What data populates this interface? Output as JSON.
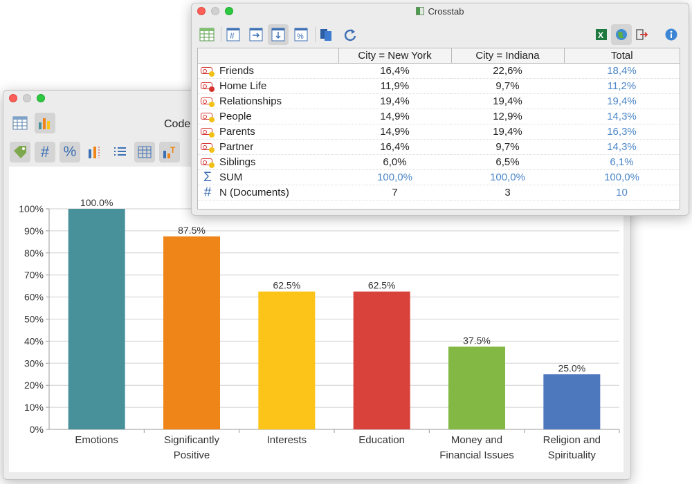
{
  "chart_window": {
    "title_partial": "Code",
    "toolbar": [
      {
        "name": "table-view-icon"
      },
      {
        "name": "chart-view-icon"
      },
      {
        "name": "tag-icon"
      },
      {
        "name": "hash-icon"
      },
      {
        "name": "percent-icon"
      },
      {
        "name": "bar-chart-icon"
      },
      {
        "name": "list-icon"
      },
      {
        "name": "grid-icon"
      },
      {
        "name": "text-chart-icon"
      }
    ]
  },
  "chart_data": {
    "type": "bar",
    "categories": [
      [
        "Emotions"
      ],
      [
        "Significantly",
        "Positive"
      ],
      [
        "Interests"
      ],
      [
        "Education"
      ],
      [
        "Money and",
        "Financial Issues"
      ],
      [
        "Religion and",
        "Spirituality"
      ]
    ],
    "values": [
      100.0,
      87.5,
      62.5,
      62.5,
      37.5,
      25.0
    ],
    "data_labels": [
      "100.0%",
      "87.5%",
      "62.5%",
      "62.5%",
      "37.5%",
      "25.0%"
    ],
    "colors": [
      "#48919b",
      "#ef8519",
      "#fcc318",
      "#d9413b",
      "#82b843",
      "#4e78bd"
    ],
    "ylim": [
      0,
      100
    ],
    "yticks": [
      "0%",
      "10%",
      "20%",
      "30%",
      "40%",
      "50%",
      "60%",
      "70%",
      "80%",
      "90%",
      "100%"
    ],
    "grid": true
  },
  "crosstab": {
    "title": "Crosstab",
    "headers": [
      "",
      "City = New York",
      "City = Indiana",
      "Total"
    ],
    "rows": [
      {
        "label": "Friends",
        "icon": "code-icon",
        "dot": "#f2c118",
        "values": [
          "16,4%",
          "22,6%",
          "18,4%"
        ]
      },
      {
        "label": "Home Life",
        "icon": "code-icon",
        "dot": "#d5342e",
        "values": [
          "11,9%",
          "9,7%",
          "11,2%"
        ]
      },
      {
        "label": "Relationships",
        "icon": "code-icon",
        "dot": "#f2c118",
        "values": [
          "19,4%",
          "19,4%",
          "19,4%"
        ]
      },
      {
        "label": "People",
        "icon": "code-icon",
        "dot": "#f2c118",
        "values": [
          "14,9%",
          "12,9%",
          "14,3%"
        ]
      },
      {
        "label": "Parents",
        "icon": "code-icon",
        "dot": "#f2c118",
        "values": [
          "14,9%",
          "19,4%",
          "16,3%"
        ]
      },
      {
        "label": "Partner",
        "icon": "code-icon",
        "dot": "#f2c118",
        "values": [
          "16,4%",
          "9,7%",
          "14,3%"
        ]
      },
      {
        "label": "Siblings",
        "icon": "code-icon",
        "dot": "#f2c118",
        "values": [
          "6,0%",
          "6,5%",
          "6,1%"
        ]
      },
      {
        "label": "SUM",
        "icon": "sigma-icon",
        "symbol": "Σ",
        "values": [
          "100,0%",
          "100,0%",
          "100,0%"
        ],
        "all_blue": true
      },
      {
        "label": "N (Documents)",
        "icon": "hash-icon",
        "symbol": "#",
        "values": [
          "7",
          "3",
          "10"
        ]
      }
    ],
    "total_color": "#4b86c8"
  }
}
